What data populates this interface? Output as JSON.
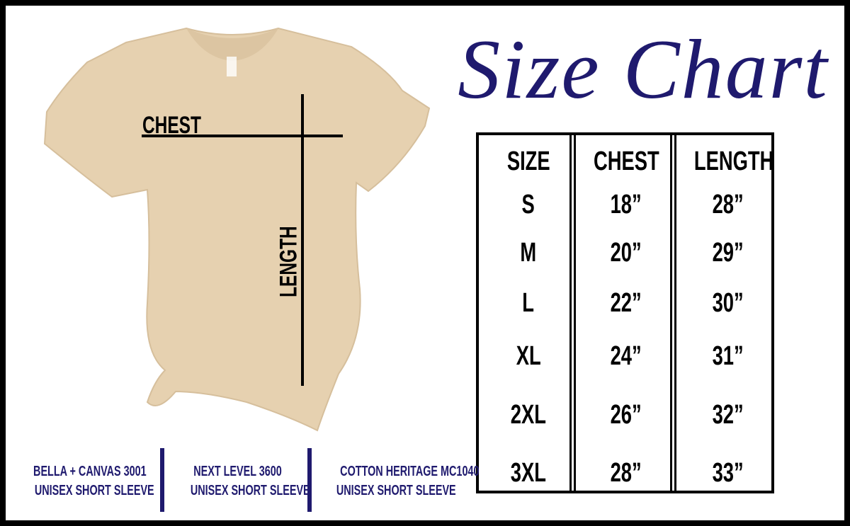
{
  "title": "Size Chart",
  "colors": {
    "accent": "#1f1a6e",
    "shirt": "#e6d1b0",
    "lines": "#000000"
  },
  "shirt": {
    "chest_label": "CHEST",
    "length_label": "LENGTH"
  },
  "table": {
    "headers": [
      "SIZE",
      "CHEST",
      "LENGTH"
    ],
    "rows": [
      [
        "S",
        "18”",
        "28”"
      ],
      [
        "M",
        "20”",
        "29”"
      ],
      [
        "L",
        "22”",
        "30”"
      ],
      [
        "XL",
        "24”",
        "31”"
      ],
      [
        "2XL",
        "26”",
        "32”"
      ],
      [
        "3XL",
        "28”",
        "33”"
      ]
    ]
  },
  "brands": [
    {
      "name": "BELLA + CANVAS 3001",
      "desc": "UNISEX SHORT SLEEVE"
    },
    {
      "name": "NEXT LEVEL 3600",
      "desc": "UNISEX SHORT SLEEVE"
    },
    {
      "name": "COTTON HERITAGE MC1040",
      "desc": "UNISEX SHORT SLEEVE"
    }
  ]
}
